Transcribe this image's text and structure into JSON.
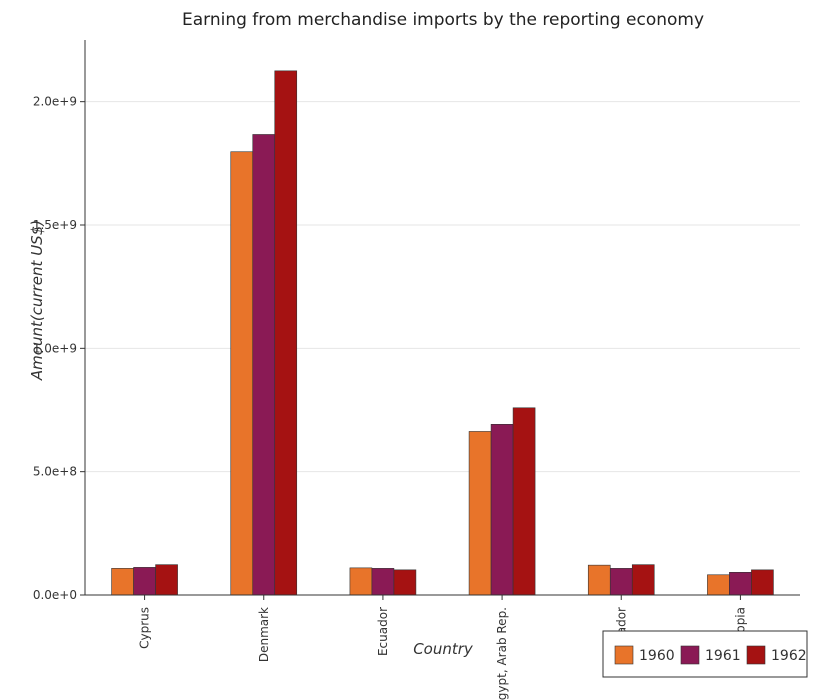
{
  "chart_data": {
    "type": "bar",
    "title": "Earning from merchandise imports by the reporting economy",
    "xlabel": "Country",
    "ylabel": "Amount(current US$)",
    "categories": [
      "Cyprus",
      "Denmark",
      "Ecuador",
      "Egypt, Arab Rep.",
      "El Salvador",
      "Ethiopia"
    ],
    "series": [
      {
        "name": "1960",
        "color": "#e8742a",
        "values": [
          108000000,
          1797000000,
          110000000,
          663000000,
          121000000,
          82000000
        ]
      },
      {
        "name": "1961",
        "color": "#8a1a55",
        "values": [
          112000000,
          1867000000,
          108000000,
          692000000,
          108000000,
          92000000
        ]
      },
      {
        "name": "1962",
        "color": "#a51212",
        "values": [
          123000000,
          2125000000,
          102000000,
          759000000,
          123000000,
          102000000
        ]
      }
    ],
    "ylim": [
      0,
      2250000000
    ],
    "yticks": [
      0,
      500000000,
      1000000000,
      1500000000,
      2000000000
    ],
    "ytick_labels": [
      "0.0e+0",
      "5.0e+8",
      "1.0e+9",
      "1.5e+9",
      "2.0e+9"
    ],
    "grid": true,
    "legend_position": "bottom-right"
  }
}
